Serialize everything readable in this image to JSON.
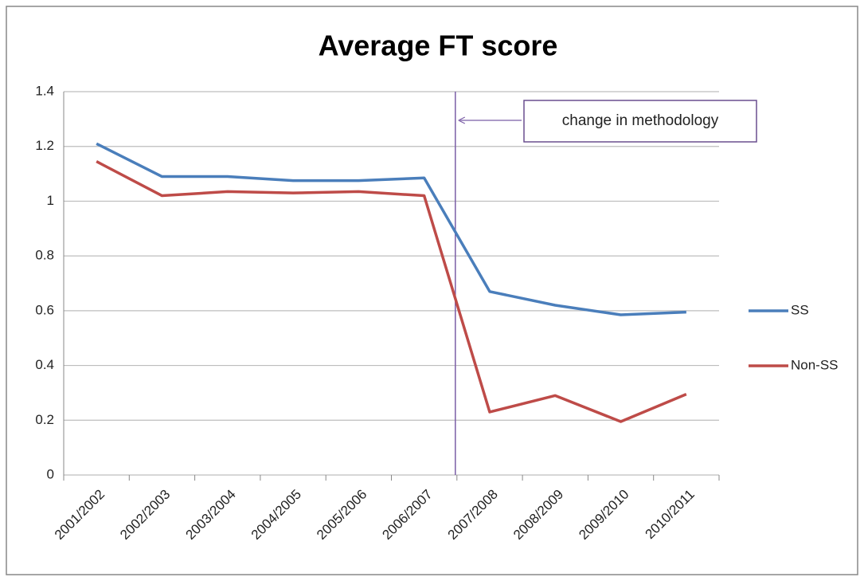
{
  "chart_data": {
    "type": "line",
    "title": "Average FT score",
    "categories": [
      "2001/2002",
      "2002/2003",
      "2003/2004",
      "2004/2005",
      "2005/2006",
      "2006/2007",
      "2007/2008",
      "2008/2009",
      "2009/2010",
      "2010/2011"
    ],
    "series": [
      {
        "name": "SS",
        "color": "#4a7ebb",
        "values": [
          1.21,
          1.09,
          1.09,
          1.075,
          1.075,
          1.085,
          0.67,
          0.62,
          0.585,
          0.595
        ]
      },
      {
        "name": "Non-SS",
        "color": "#be4b48",
        "values": [
          1.145,
          1.02,
          1.035,
          1.03,
          1.035,
          1.02,
          0.23,
          0.29,
          0.195,
          0.295
        ]
      }
    ],
    "ylim": [
      0,
      1.4
    ],
    "yticks": [
      0,
      0.2,
      0.4,
      0.6,
      0.8,
      1,
      1.2,
      1.4
    ],
    "grid": true,
    "legend": "right",
    "annotation": "change in methodology"
  }
}
